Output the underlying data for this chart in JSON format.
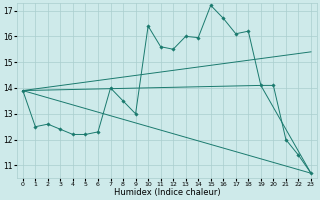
{
  "xlabel": "Humidex (Indice chaleur)",
  "xlim": [
    -0.5,
    23.5
  ],
  "ylim": [
    10.5,
    17.3
  ],
  "yticks": [
    11,
    12,
    13,
    14,
    15,
    16,
    17
  ],
  "xticks": [
    0,
    1,
    2,
    3,
    4,
    5,
    6,
    7,
    8,
    9,
    10,
    11,
    12,
    13,
    14,
    15,
    16,
    17,
    18,
    19,
    20,
    21,
    22,
    23
  ],
  "bg_color": "#ceeaea",
  "grid_color": "#aacece",
  "line_color": "#1a7a6e",
  "line1": {
    "x": [
      0,
      1,
      2,
      3,
      4,
      5,
      6,
      7,
      8,
      9,
      10,
      11,
      12,
      13,
      14,
      15,
      16,
      17,
      18,
      19,
      20,
      21,
      22,
      23
    ],
    "y": [
      13.9,
      12.5,
      12.6,
      12.4,
      12.2,
      12.2,
      12.3,
      14.0,
      13.5,
      13.0,
      16.4,
      15.6,
      15.5,
      16.0,
      15.95,
      17.2,
      16.7,
      16.1,
      16.2,
      14.1,
      14.1,
      12.0,
      11.4,
      10.7
    ]
  },
  "line2": {
    "x": [
      0,
      23
    ],
    "y": [
      13.9,
      15.4
    ]
  },
  "line3": {
    "x": [
      0,
      19,
      23
    ],
    "y": [
      13.9,
      14.1,
      10.7
    ]
  },
  "line4": {
    "x": [
      0,
      23
    ],
    "y": [
      13.9,
      10.7
    ]
  }
}
